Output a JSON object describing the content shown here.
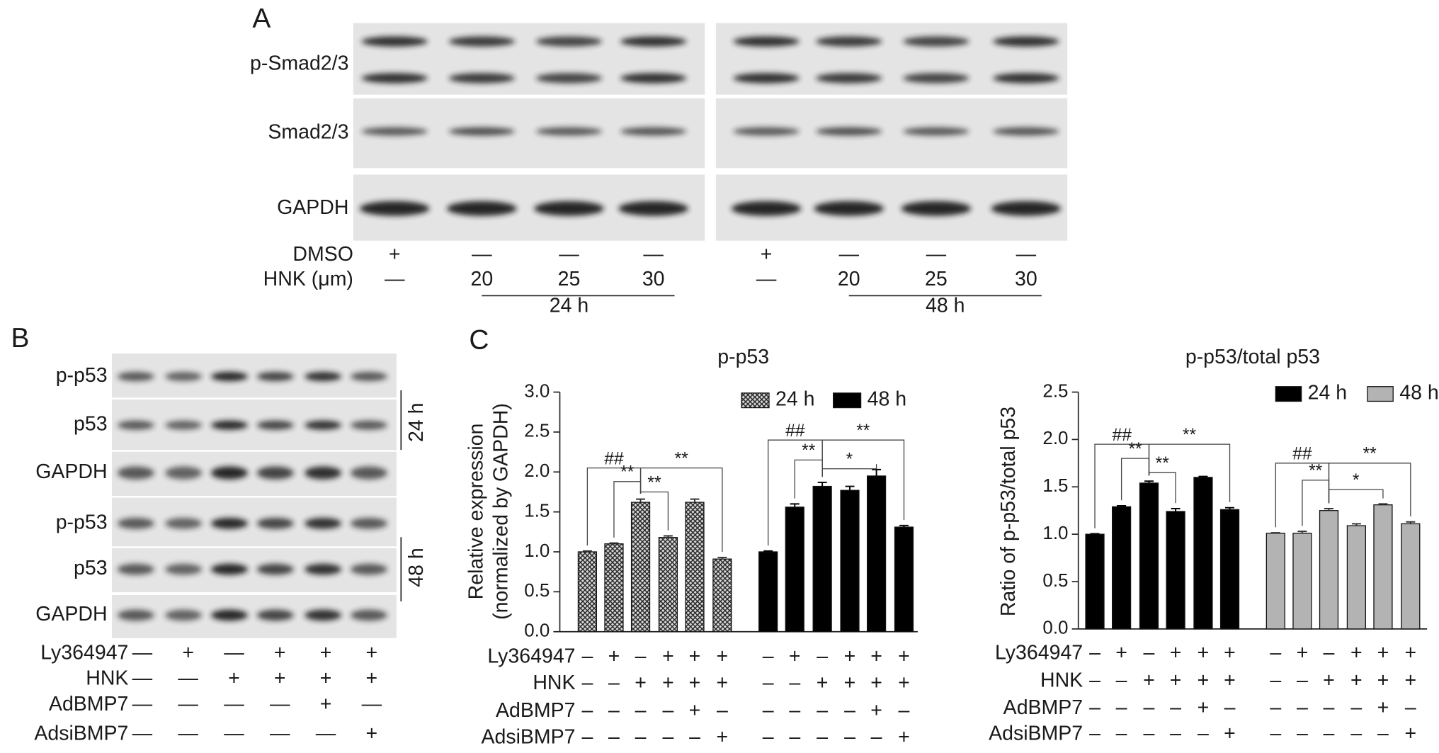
{
  "panel_a": {
    "label": "A",
    "rows": [
      "p-Smad2/3",
      "Smad2/3",
      "GAPDH"
    ],
    "treatments": [
      {
        "name": "DMSO",
        "lanes": [
          "+",
          "—",
          "—",
          "—",
          "+",
          "—",
          "—",
          "—"
        ]
      },
      {
        "name": "HNK (μm)",
        "lanes": [
          "—",
          "20",
          "25",
          "30",
          "—",
          "20",
          "25",
          "30"
        ]
      }
    ],
    "groups": [
      "24 h",
      "48 h"
    ]
  },
  "panel_b": {
    "label": "B",
    "rows": [
      "p-p53",
      "p53",
      "GAPDH",
      "p-p53",
      "p53",
      "GAPDH"
    ],
    "groups": [
      "24 h",
      "48 h"
    ],
    "treatments": [
      {
        "name": "Ly364947",
        "lanes": [
          "—",
          "+",
          "—",
          "+",
          "+",
          "+"
        ]
      },
      {
        "name": "HNK",
        "lanes": [
          "—",
          "—",
          "+",
          "+",
          "+",
          "+"
        ]
      },
      {
        "name": "AdBMP7",
        "lanes": [
          "—",
          "—",
          "—",
          "—",
          "+",
          "—"
        ]
      },
      {
        "name": "AdsiBMP7",
        "lanes": [
          "—",
          "—",
          "—",
          "—",
          "—",
          "+"
        ]
      }
    ]
  },
  "panel_c": {
    "label": "C"
  },
  "chart_data": [
    {
      "type": "bar",
      "title": "p-p53",
      "ylabel": [
        "Relative expression",
        "(normalized by GAPDH)"
      ],
      "ylim": [
        0,
        3
      ],
      "yticks": [
        {
          "value": 0,
          "label": "0.0"
        },
        {
          "value": 0.5,
          "label": "0.5"
        },
        {
          "value": 1,
          "label": "1.0"
        },
        {
          "value": 1.5,
          "label": "1.5"
        },
        {
          "value": 2,
          "label": "2.0"
        },
        {
          "value": 2.5,
          "label": "2.5"
        },
        {
          "value": 3,
          "label": "3.0"
        }
      ],
      "legend": "upper right",
      "series": [
        {
          "name": "24 h",
          "color": "#999999",
          "pattern": "crosshatch",
          "values": [
            1.0,
            1.1,
            1.62,
            1.18,
            1.62,
            0.91
          ],
          "errors": [
            0.01,
            0.01,
            0.04,
            0.02,
            0.04,
            0.02
          ]
        },
        {
          "name": "48 h",
          "color": "#000000",
          "values": [
            1.0,
            1.56,
            1.82,
            1.77,
            1.95,
            1.31
          ],
          "errors": [
            0.01,
            0.04,
            0.05,
            0.05,
            0.08,
            0.02
          ]
        }
      ],
      "annotations": [
        {
          "text": "##",
          "series": 0,
          "from": 0,
          "to": 2,
          "color": "#555555"
        },
        {
          "text": "**",
          "series": 0,
          "from": 2,
          "to": 5,
          "color": "#888888"
        },
        {
          "text": "**",
          "series": 0,
          "from": 1,
          "to": 2,
          "color": "#888888"
        },
        {
          "text": "**",
          "series": 0,
          "from": 2,
          "to": 3,
          "color": "#888888"
        },
        {
          "text": "##",
          "series": 1,
          "from": 0,
          "to": 2,
          "color": "#555555"
        },
        {
          "text": "**",
          "series": 1,
          "from": 2,
          "to": 5,
          "color": "#888888"
        },
        {
          "text": "**",
          "series": 1,
          "from": 1,
          "to": 2,
          "color": "#888888"
        },
        {
          "text": "*",
          "series": 1,
          "from": 2,
          "to": 4,
          "color": "#888888"
        }
      ],
      "conditions": [
        {
          "name": "Ly364947",
          "signs": [
            "–",
            "+",
            "–",
            "+",
            "+",
            "+",
            "–",
            "+",
            "–",
            "+",
            "+",
            "+"
          ]
        },
        {
          "name": "HNK",
          "signs": [
            "–",
            "–",
            "+",
            "+",
            "+",
            "+",
            "–",
            "–",
            "+",
            "+",
            "+",
            "+"
          ]
        },
        {
          "name": "AdBMP7",
          "signs": [
            "–",
            "–",
            "–",
            "–",
            "+",
            "–",
            "–",
            "–",
            "–",
            "–",
            "+",
            "–"
          ]
        },
        {
          "name": "AdsiBMP7",
          "signs": [
            "–",
            "–",
            "–",
            "–",
            "–",
            "+",
            "–",
            "–",
            "–",
            "–",
            "–",
            "+"
          ]
        }
      ]
    },
    {
      "type": "bar",
      "title": "p-p53/total p53",
      "ylabel": [
        "Ratio of p-p53/total p53"
      ],
      "ylim": [
        0,
        2.5
      ],
      "yticks": [
        {
          "value": 0,
          "label": "0.0"
        },
        {
          "value": 0.5,
          "label": "0.5"
        },
        {
          "value": 1,
          "label": "1.0"
        },
        {
          "value": 1.5,
          "label": "1.5"
        },
        {
          "value": 2,
          "label": "2.0"
        },
        {
          "value": 2.5,
          "label": "2.5"
        }
      ],
      "legend": "upper right",
      "series": [
        {
          "name": "24 h",
          "color": "#000000",
          "values": [
            1.0,
            1.29,
            1.54,
            1.24,
            1.6,
            1.26
          ],
          "errors": [
            0.005,
            0.01,
            0.02,
            0.03,
            0.01,
            0.02
          ]
        },
        {
          "name": "48 h",
          "color": "#b3b3b3",
          "values": [
            1.01,
            1.01,
            1.25,
            1.09,
            1.31,
            1.11
          ],
          "errors": [
            0.005,
            0.02,
            0.02,
            0.02,
            0.01,
            0.02
          ]
        }
      ],
      "annotations": [
        {
          "text": "##",
          "series": 0,
          "from": 0,
          "to": 2,
          "color": "#555555"
        },
        {
          "text": "**",
          "series": 0,
          "from": 2,
          "to": 5,
          "color": "#888888"
        },
        {
          "text": "**",
          "series": 0,
          "from": 1,
          "to": 2,
          "color": "#888888"
        },
        {
          "text": "**",
          "series": 0,
          "from": 2,
          "to": 3,
          "color": "#888888"
        },
        {
          "text": "##",
          "series": 1,
          "from": 0,
          "to": 2,
          "color": "#555555"
        },
        {
          "text": "**",
          "series": 1,
          "from": 2,
          "to": 5,
          "color": "#888888"
        },
        {
          "text": "**",
          "series": 1,
          "from": 1,
          "to": 2,
          "color": "#888888"
        },
        {
          "text": "*",
          "series": 1,
          "from": 2,
          "to": 4,
          "color": "#888888"
        }
      ],
      "conditions": [
        {
          "name": "Ly364947",
          "signs": [
            "–",
            "+",
            "–",
            "+",
            "+",
            "+",
            "–",
            "+",
            "–",
            "+",
            "+",
            "+"
          ]
        },
        {
          "name": "HNK",
          "signs": [
            "–",
            "–",
            "+",
            "+",
            "+",
            "+",
            "–",
            "–",
            "+",
            "+",
            "+",
            "+"
          ]
        },
        {
          "name": "AdBMP7",
          "signs": [
            "–",
            "–",
            "–",
            "–",
            "+",
            "–",
            "–",
            "–",
            "–",
            "–",
            "+",
            "–"
          ]
        },
        {
          "name": "AdsiBMP7",
          "signs": [
            "–",
            "–",
            "–",
            "–",
            "–",
            "+",
            "–",
            "–",
            "–",
            "–",
            "–",
            "+"
          ]
        }
      ]
    }
  ]
}
